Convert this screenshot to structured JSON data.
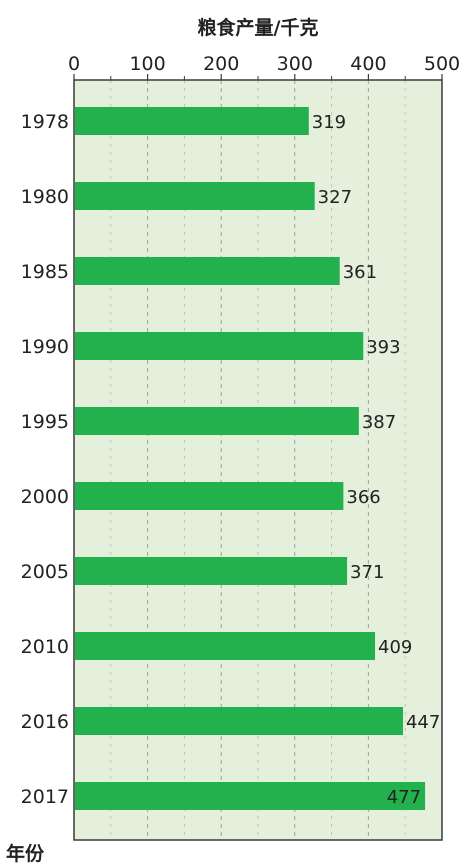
{
  "chart_data": {
    "type": "bar",
    "orientation": "horizontal",
    "title": "粮食产量/千克",
    "ylabel": "年份",
    "xlabel": "",
    "categories": [
      "1978",
      "1980",
      "1985",
      "1990",
      "1995",
      "2000",
      "2005",
      "2010",
      "2016",
      "2017"
    ],
    "values": [
      319,
      327,
      361,
      393,
      387,
      366,
      371,
      409,
      447,
      477
    ],
    "data_labels": [
      "319",
      "327",
      "361",
      "393",
      "387",
      "366",
      "371",
      "409",
      "447",
      "477"
    ],
    "xlim": [
      0,
      500
    ],
    "xticks": [
      0,
      100,
      200,
      300,
      400,
      500
    ],
    "xtick_labels": [
      "0",
      "100",
      "200",
      "300",
      "400",
      "500"
    ],
    "axis_position": "top",
    "grid": true,
    "colors": {
      "bar": "#22b14c",
      "plot_background": "#e4efdc",
      "grid": "#9aa894",
      "axis": "#3a3a3a"
    }
  }
}
